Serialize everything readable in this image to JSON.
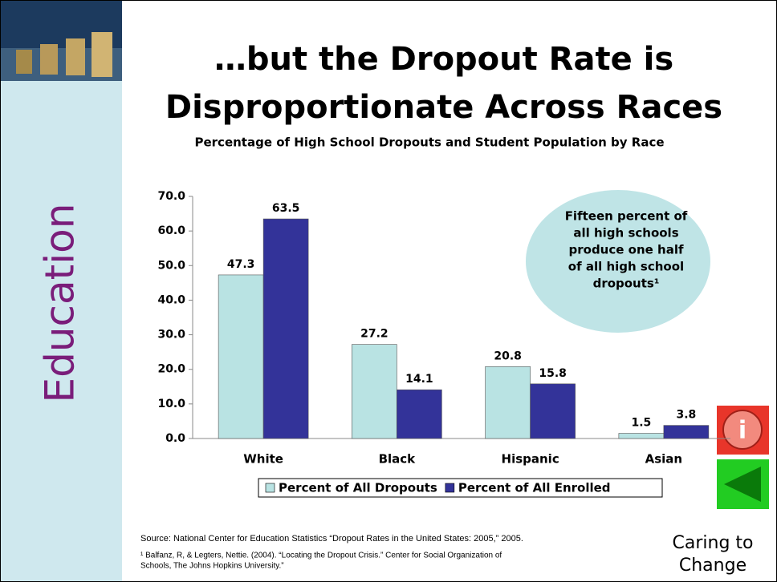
{
  "slide_title": [
    "…but the Dropout Rate is",
    "Disproportionate Across Races"
  ],
  "sidebar_label": "Education",
  "sources": [
    "Source: National Center for Education Statistics “Dropout Rates in the United States: 2005,” 2005.",
    "¹ Balfanz, R, & Legters, Nettie. (2004). “Locating the Dropout Crisis.” Center for Social Organization of",
    "Schools, The Johns Hopkins University.”"
  ],
  "footer": [
    "Caring to",
    "Change"
  ],
  "chart_data": {
    "type": "bar",
    "title": "Percentage of High School Dropouts and Student Population by Race",
    "categories": [
      "White",
      "Black",
      "Hispanic",
      "Asian"
    ],
    "series": [
      {
        "name": "Percent of All Dropouts",
        "color": "#b9e3e3",
        "values": [
          47.3,
          27.2,
          20.8,
          1.5
        ]
      },
      {
        "name": "Percent of All Enrolled",
        "color": "#333399",
        "values": [
          63.5,
          14.1,
          15.8,
          3.8
        ]
      }
    ],
    "ylim": [
      0,
      70
    ],
    "yticks": [
      {
        "value": 0,
        "label": "0.0"
      },
      {
        "value": 10,
        "label": "10.0"
      },
      {
        "value": 20,
        "label": "20.0"
      },
      {
        "value": 30,
        "label": "30.0"
      },
      {
        "value": 40,
        "label": "40.0"
      },
      {
        "value": 50,
        "label": "50.0"
      },
      {
        "value": 60,
        "label": "60.0"
      },
      {
        "value": 70,
        "label": "70.0"
      }
    ],
    "annotation": [
      "Fifteen percent of",
      "all high schools",
      "produce one half",
      "of all high school",
      "dropouts¹"
    ]
  }
}
